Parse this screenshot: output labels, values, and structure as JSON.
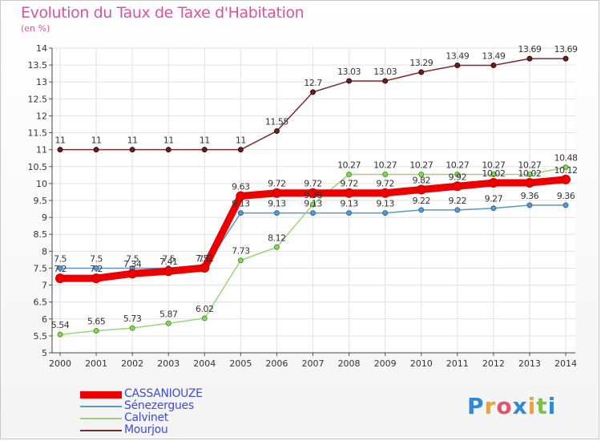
{
  "title": "Evolution du Taux de Taxe d'Habitation",
  "unit_label": "(en %)",
  "logo_text": "Proxiti",
  "chart_data": {
    "type": "line",
    "title": "Evolution du Taux de Taxe d'Habitation",
    "ylabel": "(en %)",
    "xlabel": "",
    "x": [
      "2000",
      "2001",
      "2002",
      "2003",
      "2004",
      "2005",
      "2006",
      "2007",
      "2008",
      "2009",
      "2010",
      "2011",
      "2012",
      "2013",
      "2014"
    ],
    "ylim": [
      5,
      14
    ],
    "yticks": [
      "5",
      "5.5",
      "6",
      "6.5",
      "7",
      "7.5",
      "8",
      "8.5",
      "9",
      "9.5",
      "10",
      "10.5",
      "11",
      "11.5",
      "12",
      "12.5",
      "13",
      "13.5",
      "14"
    ],
    "grid": true,
    "legend_position": "bottom-left",
    "series": [
      {
        "name": "CASSANIOUZE",
        "color": "#ee0000",
        "values": [
          7.2,
          7.2,
          7.34,
          7.41,
          7.51,
          9.63,
          9.72,
          9.72,
          9.72,
          9.72,
          9.82,
          9.92,
          10.02,
          10.02,
          10.12
        ],
        "labels": [
          "7.2",
          "7.2",
          "7.34",
          "7.41",
          "7.51",
          "9.63",
          "9.72",
          "9.72",
          "9.72",
          "9.72",
          "9.82",
          "9.92",
          "10.02",
          "10.02",
          "10.12"
        ]
      },
      {
        "name": "Sénezergues",
        "color": "#5b97c8",
        "values": [
          7.5,
          7.5,
          7.5,
          7.5,
          7.5,
          9.13,
          9.13,
          9.13,
          9.13,
          9.13,
          9.22,
          9.22,
          9.27,
          9.36,
          9.36
        ],
        "labels": [
          "7.5",
          "7.5",
          "7.5",
          "7.5",
          "7.5",
          "9.13",
          "9.13",
          "9.13",
          "9.13",
          "9.13",
          "9.22",
          "9.22",
          "9.27",
          "9.36",
          "9.36"
        ]
      },
      {
        "name": "Calvinet",
        "color": "#9ad47a",
        "values": [
          5.54,
          5.65,
          5.73,
          5.87,
          6.02,
          7.73,
          8.12,
          9.38,
          10.27,
          10.27,
          10.27,
          10.27,
          10.27,
          10.27,
          10.48
        ],
        "labels": [
          "5.54",
          "5.65",
          "5.73",
          "5.87",
          "6.02",
          "7.73",
          "8.12",
          "9.38",
          "10.27",
          "10.27",
          "10.27",
          "10.27",
          "10.27",
          "10.27",
          "10.48"
        ]
      },
      {
        "name": "Mourjou",
        "color": "#7a2d2d",
        "values": [
          11,
          11,
          11,
          11,
          11,
          11,
          11.55,
          12.7,
          13.03,
          13.03,
          13.29,
          13.49,
          13.49,
          13.69,
          13.69
        ],
        "labels": [
          "11",
          "11",
          "11",
          "11",
          "11",
          "11",
          "11.55",
          "12.7",
          "13.03",
          "13.03",
          "13.29",
          "13.49",
          "13.49",
          "13.69",
          "13.69"
        ]
      }
    ]
  }
}
